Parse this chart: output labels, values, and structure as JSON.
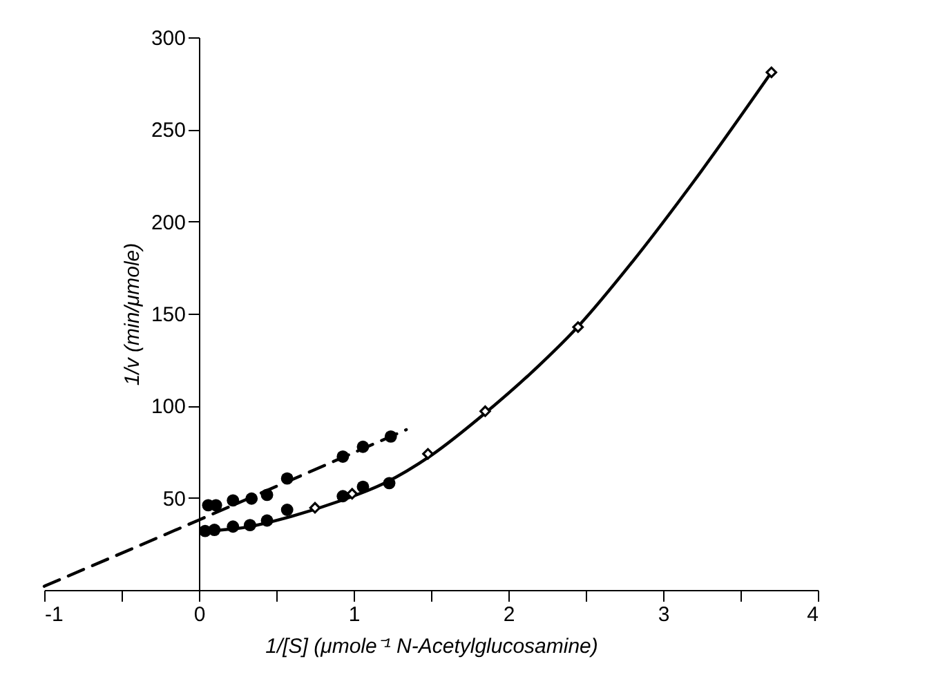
{
  "chart_data": {
    "type": "scatter",
    "xlabel": "1/[S] (μmole⁻¹ N-Acetylglucosamine)",
    "ylabel": "1/v (min/μmole)",
    "xlim": [
      -1,
      4
    ],
    "ylim": [
      0,
      300
    ],
    "xticks": [
      -1,
      {
        "value": -0.5,
        "label": null
      },
      0,
      {
        "value": 0.5,
        "label": null
      },
      1,
      {
        "value": 1.5,
        "label": null
      },
      2,
      {
        "value": 2.5,
        "label": null
      },
      3,
      {
        "value": 3.5,
        "label": null
      },
      4
    ],
    "yticks": [
      50,
      100,
      150,
      200,
      250,
      300
    ],
    "grid": false,
    "series": [
      {
        "type": "line",
        "line_style": "dashed",
        "color": "#000000",
        "x": [
          -1,
          0,
          1.34
        ],
        "values": [
          2,
          38,
          87
        ]
      },
      {
        "type": "line",
        "line_style": "solid",
        "color": "#000000",
        "x": [
          0.05,
          0.3,
          0.6,
          0.9,
          1.2,
          1.5,
          1.85,
          2.2,
          2.45,
          2.8,
          3.2,
          3.7
        ],
        "values": [
          32,
          34,
          40,
          48,
          58,
          73,
          96,
          122,
          143,
          178,
          222,
          281
        ]
      },
      {
        "marker": "circle",
        "color": "#000000",
        "x": [
          0.06,
          0.11,
          0.22,
          0.34,
          0.44,
          0.57,
          0.93,
          1.06,
          1.24
        ],
        "values": [
          46,
          46,
          48.6,
          49.6,
          51.6,
          60.5,
          72.4,
          77.7,
          83.3
        ]
      },
      {
        "marker": "circle",
        "color": "#000000",
        "x": [
          0.04,
          0.1,
          0.22,
          0.33,
          0.44,
          0.57,
          0.93,
          1.06,
          1.23
        ],
        "values": [
          32,
          32.6,
          34.4,
          35.2,
          37.7,
          43.5,
          50.9,
          56,
          58
        ]
      },
      {
        "marker": "diamond",
        "color": "#000000",
        "x": [
          0.75,
          0.99,
          1.48,
          1.85,
          2.45,
          3.7
        ],
        "values": [
          44.6,
          52.2,
          73.9,
          97,
          142.7,
          281
        ]
      }
    ]
  }
}
